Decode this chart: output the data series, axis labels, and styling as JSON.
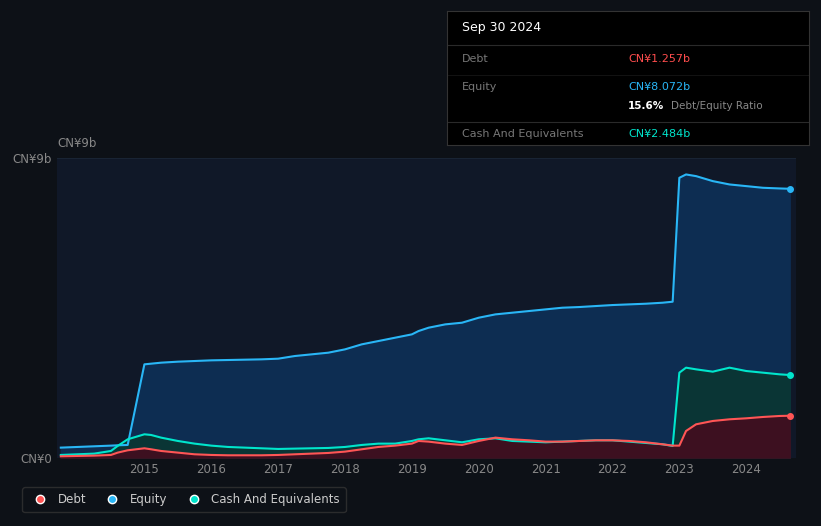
{
  "background_color": "#0d1117",
  "plot_bg_color": "#101828",
  "title_box": {
    "date": "Sep 30 2024",
    "debt_label": "Debt",
    "debt_value": "CN¥1.257b",
    "debt_color": "#ff4d4d",
    "equity_label": "Equity",
    "equity_value": "CN¥8.072b",
    "equity_color": "#29b6f6",
    "ratio_bold": "15.6%",
    "ratio_text": "Debt/Equity Ratio",
    "ratio_bold_color": "#ffffff",
    "ratio_text_color": "#888888",
    "cash_label": "Cash And Equivalents",
    "cash_value": "CN¥2.484b",
    "cash_color": "#00e5cc",
    "box_bg": "#000000",
    "label_color": "#777777"
  },
  "ylim": [
    0,
    9000000000.0
  ],
  "grid_color": "#1a2535",
  "line_colors": {
    "debt": "#ff5555",
    "equity": "#29b6f6",
    "cash": "#00e5cc"
  },
  "fill_colors": {
    "equity": "#0d2d52",
    "cash": "#0a3535",
    "debt": "#3d1020"
  },
  "years": [
    2013.75,
    2014.0,
    2014.25,
    2014.5,
    2014.6,
    2014.75,
    2015.0,
    2015.1,
    2015.25,
    2015.5,
    2015.75,
    2016.0,
    2016.25,
    2016.5,
    2016.75,
    2017.0,
    2017.25,
    2017.5,
    2017.75,
    2018.0,
    2018.25,
    2018.5,
    2018.75,
    2019.0,
    2019.1,
    2019.25,
    2019.5,
    2019.75,
    2020.0,
    2020.25,
    2020.5,
    2020.75,
    2021.0,
    2021.25,
    2021.5,
    2021.75,
    2022.0,
    2022.25,
    2022.5,
    2022.75,
    2022.9,
    2023.0,
    2023.1,
    2023.25,
    2023.5,
    2023.75,
    2024.0,
    2024.25,
    2024.5,
    2024.65
  ],
  "equity": [
    300000000.0,
    320000000.0,
    340000000.0,
    360000000.0,
    370000000.0,
    380000000.0,
    2800000000.0,
    2820000000.0,
    2850000000.0,
    2880000000.0,
    2900000000.0,
    2920000000.0,
    2930000000.0,
    2940000000.0,
    2950000000.0,
    2970000000.0,
    3050000000.0,
    3100000000.0,
    3150000000.0,
    3250000000.0,
    3400000000.0,
    3500000000.0,
    3600000000.0,
    3700000000.0,
    3800000000.0,
    3900000000.0,
    4000000000.0,
    4050000000.0,
    4200000000.0,
    4300000000.0,
    4350000000.0,
    4400000000.0,
    4450000000.0,
    4500000000.0,
    4520000000.0,
    4550000000.0,
    4580000000.0,
    4600000000.0,
    4620000000.0,
    4650000000.0,
    4680000000.0,
    8400000000.0,
    8500000000.0,
    8450000000.0,
    8300000000.0,
    8200000000.0,
    8150000000.0,
    8100000000.0,
    8080000000.0,
    8070000000.0
  ],
  "cash": [
    80000000.0,
    100000000.0,
    120000000.0,
    200000000.0,
    350000000.0,
    550000000.0,
    700000000.0,
    680000000.0,
    600000000.0,
    500000000.0,
    420000000.0,
    360000000.0,
    320000000.0,
    300000000.0,
    280000000.0,
    260000000.0,
    270000000.0,
    280000000.0,
    290000000.0,
    320000000.0,
    380000000.0,
    420000000.0,
    420000000.0,
    500000000.0,
    550000000.0,
    580000000.0,
    520000000.0,
    460000000.0,
    550000000.0,
    580000000.0,
    500000000.0,
    480000000.0,
    460000000.0,
    480000000.0,
    500000000.0,
    520000000.0,
    520000000.0,
    480000000.0,
    440000000.0,
    400000000.0,
    350000000.0,
    2550000000.0,
    2700000000.0,
    2650000000.0,
    2580000000.0,
    2700000000.0,
    2600000000.0,
    2550000000.0,
    2500000000.0,
    2480000000.0
  ],
  "debt": [
    40000000.0,
    50000000.0,
    60000000.0,
    80000000.0,
    150000000.0,
    220000000.0,
    280000000.0,
    250000000.0,
    200000000.0,
    150000000.0,
    100000000.0,
    80000000.0,
    70000000.0,
    70000000.0,
    70000000.0,
    80000000.0,
    100000000.0,
    120000000.0,
    140000000.0,
    180000000.0,
    250000000.0,
    320000000.0,
    360000000.0,
    420000000.0,
    500000000.0,
    480000000.0,
    420000000.0,
    380000000.0,
    500000000.0,
    600000000.0,
    550000000.0,
    520000000.0,
    480000000.0,
    480000000.0,
    500000000.0,
    520000000.0,
    520000000.0,
    500000000.0,
    460000000.0,
    400000000.0,
    360000000.0,
    360000000.0,
    800000000.0,
    1000000000.0,
    1100000000.0,
    1150000000.0,
    1180000000.0,
    1220000000.0,
    1250000000.0,
    1257000000.0
  ],
  "xticks": [
    2015,
    2016,
    2017,
    2018,
    2019,
    2020,
    2021,
    2022,
    2023,
    2024
  ],
  "xtick_labels": [
    "2015",
    "2016",
    "2017",
    "2018",
    "2019",
    "2020",
    "2021",
    "2022",
    "2023",
    "2024"
  ],
  "ytick_labels": [
    "CN¥0",
    "CN¥9b"
  ],
  "legend": [
    {
      "label": "Debt",
      "color": "#ff5555"
    },
    {
      "label": "Equity",
      "color": "#29b6f6"
    },
    {
      "label": "Cash And Equivalents",
      "color": "#00e5cc"
    }
  ]
}
